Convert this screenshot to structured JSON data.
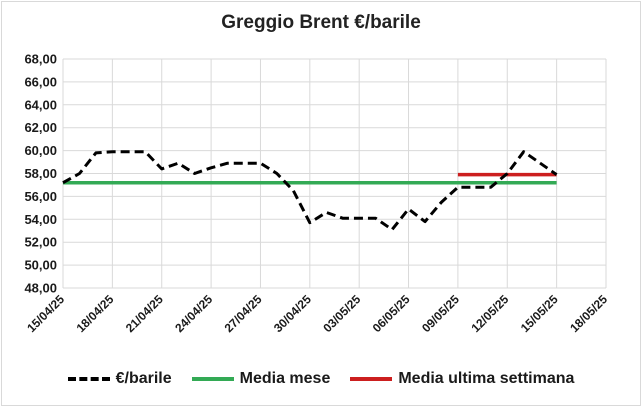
{
  "chart_data": {
    "type": "line",
    "title": "Greggio Brent €/barile",
    "xlabel": "",
    "ylabel": "",
    "ylim": [
      48,
      68
    ],
    "yticks": [
      "48,00",
      "50,00",
      "52,00",
      "54,00",
      "56,00",
      "58,00",
      "60,00",
      "62,00",
      "64,00",
      "66,00",
      "68,00"
    ],
    "xticks": [
      "15/04/25",
      "18/04/25",
      "21/04/25",
      "24/04/25",
      "27/04/25",
      "30/04/25",
      "03/05/25",
      "06/05/25",
      "09/05/25",
      "12/05/25",
      "15/05/25",
      "18/05/25"
    ],
    "x_range": [
      "2025-04-15",
      "2025-05-18"
    ],
    "grid": true,
    "legend_position": "bottom",
    "series": [
      {
        "name": "€/barile",
        "style": "dashed",
        "color": "#000000",
        "points": [
          [
            "2025-04-15",
            57.2
          ],
          [
            "2025-04-16",
            58.0
          ],
          [
            "2025-04-17",
            59.8
          ],
          [
            "2025-04-18",
            59.9
          ],
          [
            "2025-04-19",
            59.9
          ],
          [
            "2025-04-20",
            59.9
          ],
          [
            "2025-04-21",
            58.4
          ],
          [
            "2025-04-22",
            58.9
          ],
          [
            "2025-04-23",
            58.0
          ],
          [
            "2025-04-24",
            58.5
          ],
          [
            "2025-04-25",
            58.9
          ],
          [
            "2025-04-26",
            58.9
          ],
          [
            "2025-04-27",
            58.9
          ],
          [
            "2025-04-28",
            58.0
          ],
          [
            "2025-04-29",
            56.5
          ],
          [
            "2025-04-30",
            53.7
          ],
          [
            "2025-05-01",
            54.6
          ],
          [
            "2025-05-02",
            54.1
          ],
          [
            "2025-05-03",
            54.1
          ],
          [
            "2025-05-04",
            54.1
          ],
          [
            "2025-05-05",
            53.1
          ],
          [
            "2025-05-06",
            54.9
          ],
          [
            "2025-05-07",
            53.8
          ],
          [
            "2025-05-08",
            55.5
          ],
          [
            "2025-05-09",
            56.8
          ],
          [
            "2025-05-10",
            56.8
          ],
          [
            "2025-05-11",
            56.8
          ],
          [
            "2025-05-12",
            58.0
          ],
          [
            "2025-05-13",
            59.9
          ],
          [
            "2025-05-14",
            58.9
          ],
          [
            "2025-05-15",
            57.9
          ]
        ]
      },
      {
        "name": "Media mese",
        "style": "solid",
        "color": "#33aa55",
        "points": [
          [
            "2025-04-15",
            57.2
          ],
          [
            "2025-05-15",
            57.2
          ]
        ]
      },
      {
        "name": "Media ultima settimana",
        "style": "solid",
        "color": "#cc1f1f",
        "points": [
          [
            "2025-05-09",
            57.9
          ],
          [
            "2025-05-15",
            57.9
          ]
        ]
      }
    ]
  }
}
